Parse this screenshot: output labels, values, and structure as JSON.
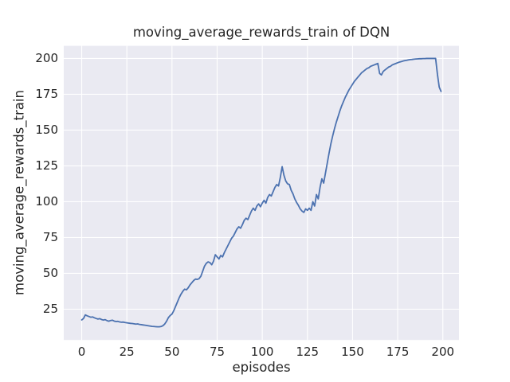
{
  "figure": {
    "background_color": "#ffffff",
    "text_color": "#262626"
  },
  "chart_data": {
    "type": "line",
    "title": "moving_average_rewards_train of DQN",
    "xlabel": "episodes",
    "ylabel": "moving_average_rewards_train",
    "grid": true,
    "legend_position": "none",
    "plot_bg_color": "#eaeaf2",
    "grid_color": "#ffffff",
    "line_color": "#4c72b0",
    "x_ticks": [
      0,
      25,
      50,
      75,
      100,
      125,
      150,
      175,
      200
    ],
    "y_ticks": [
      25,
      50,
      75,
      100,
      125,
      150,
      175,
      200
    ],
    "xlim": [
      -9.95,
      208.95
    ],
    "ylim": [
      3.5,
      208.8
    ],
    "series": [
      {
        "name": "DQN",
        "x_start": 0,
        "x_step": 1,
        "values": [
          17.5,
          18.5,
          21,
          20.4,
          19.9,
          19.4,
          19.6,
          19,
          18.5,
          18.1,
          18.4,
          17.8,
          17.4,
          17.7,
          17,
          16.6,
          17.1,
          17.3,
          16.7,
          16.4,
          16.5,
          16.1,
          15.9,
          16,
          15.7,
          15.5,
          15.3,
          15.1,
          15,
          14.8,
          14.6,
          14.7,
          14.4,
          14.2,
          14,
          13.8,
          13.6,
          13.4,
          13.2,
          13,
          12.9,
          12.8,
          12.7,
          12.7,
          12.9,
          13.5,
          14.7,
          16.6,
          19.1,
          20.6,
          21.6,
          24,
          27,
          30,
          33,
          35.5,
          37.5,
          39,
          38.5,
          40,
          42,
          43.5,
          45,
          46,
          45.8,
          46.3,
          48,
          51.5,
          55,
          57,
          58,
          57.5,
          56,
          58.5,
          63,
          61.5,
          60,
          62.5,
          61.5,
          64.5,
          67,
          69.5,
          72,
          74.5,
          76,
          78.5,
          81,
          82.5,
          81.5,
          84,
          87,
          88.5,
          87.5,
          90.5,
          93.5,
          95.5,
          94,
          97,
          98.5,
          96.5,
          99,
          101,
          99,
          103,
          105,
          104,
          107,
          110,
          112,
          111,
          117,
          124.5,
          118.5,
          114.5,
          112.5,
          112,
          108,
          105.5,
          102,
          99.5,
          97.5,
          95,
          93.5,
          92.5,
          95,
          94,
          95.5,
          94,
          100,
          97,
          105,
          102,
          110,
          116,
          113,
          120,
          127,
          134,
          140.5,
          146,
          151,
          155.5,
          159.5,
          163.5,
          167,
          170,
          173,
          175.5,
          178,
          180,
          182,
          184,
          185.5,
          187,
          188.5,
          190,
          191,
          192,
          193,
          193.5,
          194.5,
          195,
          195.5,
          196,
          196.5,
          189.5,
          188.5,
          191,
          192,
          193,
          194,
          194.5,
          195.5,
          196,
          196.5,
          197,
          197.5,
          197.8,
          198.2,
          198.5,
          198.7,
          199,
          199.2,
          199.3,
          199.5,
          199.6,
          199.7,
          199.8,
          199.8,
          199.9,
          199.9,
          200,
          200,
          200,
          200,
          200,
          200,
          189,
          180,
          177
        ]
      }
    ]
  }
}
